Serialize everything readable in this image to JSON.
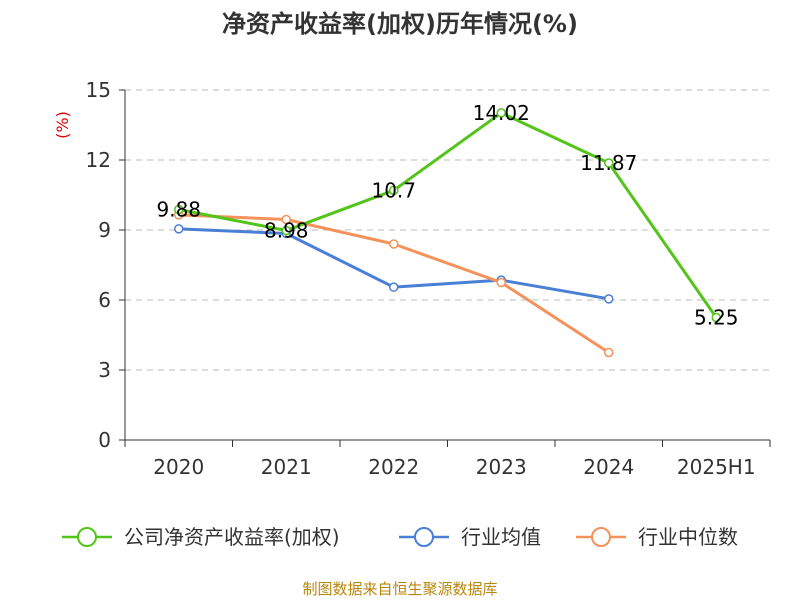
{
  "chart_data": {
    "type": "line",
    "title": "净资产收益率(加权)历年情况(%)",
    "ylabel": "(%)",
    "xlabel": "",
    "categories": [
      "2020",
      "2021",
      "2022",
      "2023",
      "2024",
      "2025H1"
    ],
    "ylim": [
      0,
      15
    ],
    "yticks": [
      0,
      3,
      6,
      9,
      12,
      15
    ],
    "grid": true,
    "legend_position": "bottom",
    "series": [
      {
        "name": "公司净资产收益率(加权)",
        "color": "#52c41a",
        "values": [
          9.88,
          8.98,
          10.7,
          14.02,
          11.87,
          5.25
        ],
        "labels": [
          "9.88",
          "8.98",
          "10.7",
          "14.02",
          "11.87",
          "5.25"
        ]
      },
      {
        "name": "行业均值",
        "color": "#4a7fd6",
        "values": [
          9.05,
          8.85,
          6.55,
          6.85,
          6.05,
          null
        ],
        "labels": null
      },
      {
        "name": "行业中位数",
        "color": "#f4925a",
        "values": [
          9.65,
          9.45,
          8.4,
          6.75,
          3.75,
          null
        ],
        "labels": null
      }
    ]
  },
  "source_text": "制图数据来自恒生聚源数据库"
}
